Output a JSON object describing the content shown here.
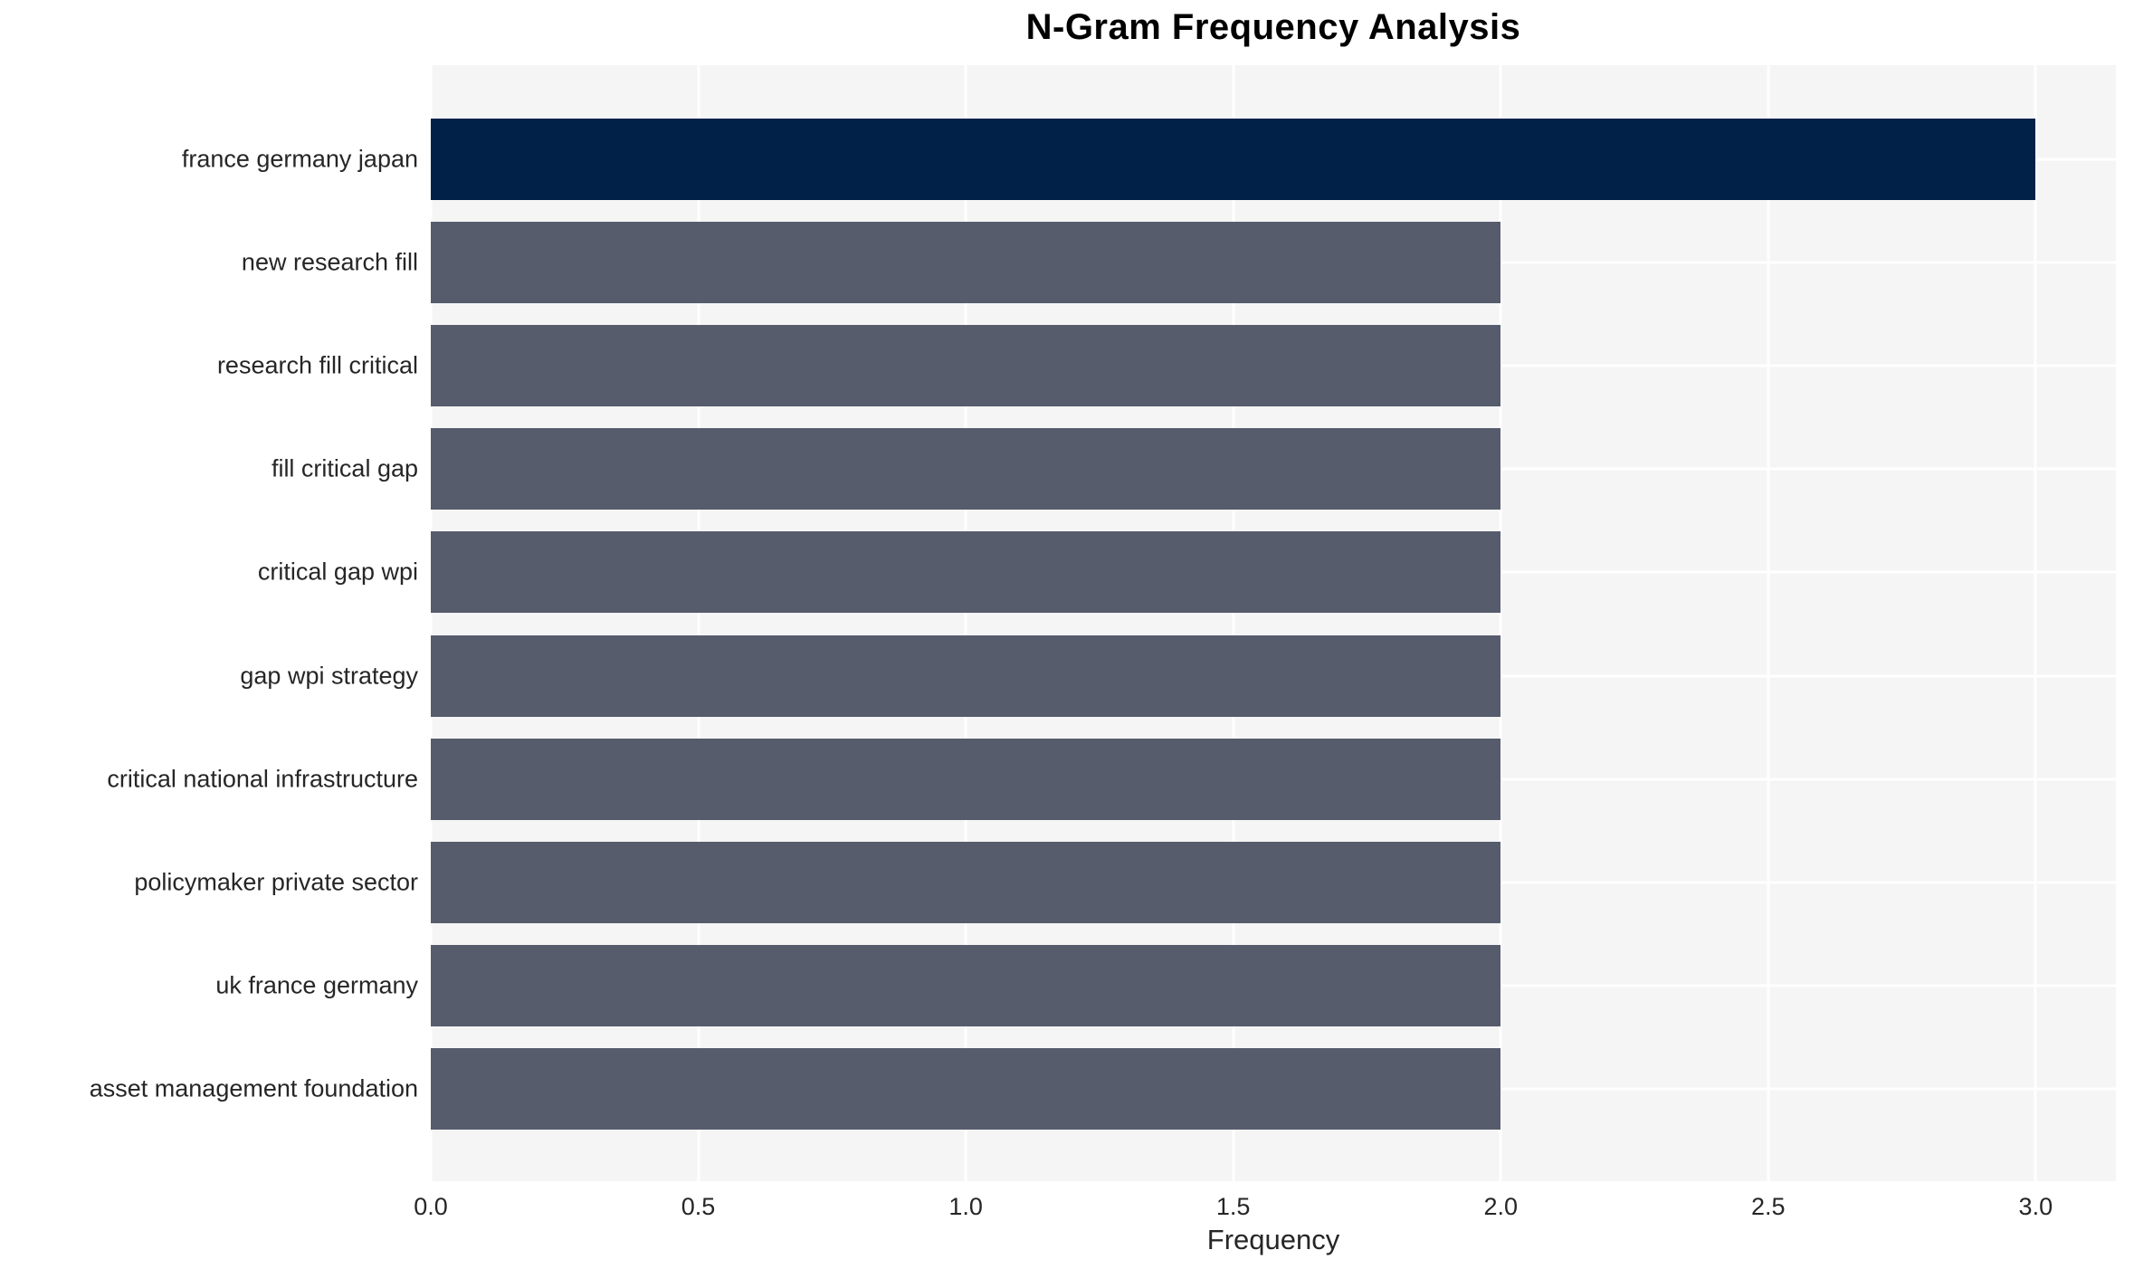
{
  "chart_data": {
    "type": "bar",
    "orientation": "horizontal",
    "title": "N-Gram Frequency Analysis",
    "xlabel": "Frequency",
    "ylabel": "",
    "categories": [
      "france germany japan",
      "new research fill",
      "research fill critical",
      "fill critical gap",
      "critical gap wpi",
      "gap wpi strategy",
      "critical national infrastructure",
      "policymaker private sector",
      "uk france germany",
      "asset management foundation"
    ],
    "values": [
      3,
      2,
      2,
      2,
      2,
      2,
      2,
      2,
      2,
      2
    ],
    "xlim": [
      0,
      3.15
    ],
    "xticks": [
      {
        "value": 0.0,
        "label": "0.0"
      },
      {
        "value": 0.5,
        "label": "0.5"
      },
      {
        "value": 1.0,
        "label": "1.0"
      },
      {
        "value": 1.5,
        "label": "1.5"
      },
      {
        "value": 2.0,
        "label": "2.0"
      },
      {
        "value": 2.5,
        "label": "2.5"
      },
      {
        "value": 3.0,
        "label": "3.0"
      }
    ],
    "grid": true,
    "legend": false,
    "colors": {
      "highlight_bar": "#012149",
      "default_bar": "#565c6b",
      "plot_background": "#f5f5f6",
      "gridline": "#ffffff",
      "title_text": "#000000",
      "tick_text": "#262626"
    },
    "bar_colors": [
      "#012149",
      "#565c6b",
      "#565c6b",
      "#565c6b",
      "#565c6b",
      "#565c6b",
      "#565c6b",
      "#565c6b",
      "#565c6b",
      "#565c6b"
    ]
  }
}
